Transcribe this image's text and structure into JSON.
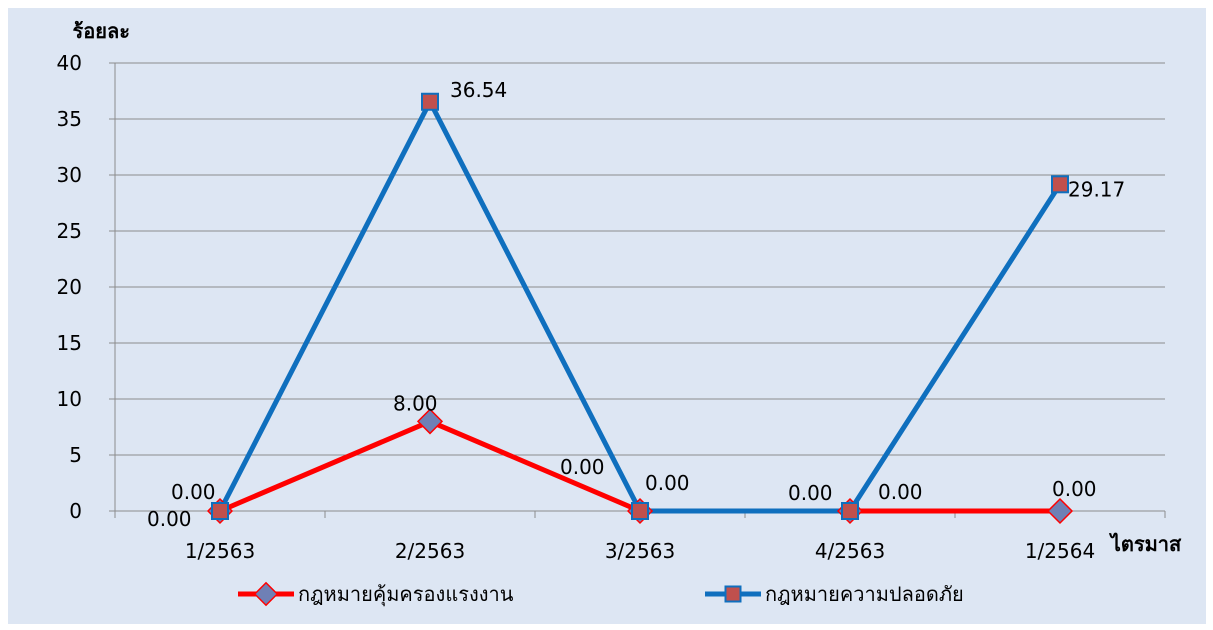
{
  "chart_data": {
    "type": "line",
    "ylabel": "ร้อยละ",
    "xlabel": "ไตรมาส",
    "categories": [
      "1/2563",
      "2/2563",
      "3/2563",
      "4/2563",
      "1/2564"
    ],
    "ylim": [
      0,
      40
    ],
    "yticks": [
      0,
      5,
      10,
      15,
      20,
      25,
      30,
      35,
      40
    ],
    "grid": true,
    "legend_position": "bottom",
    "series": [
      {
        "name": "กฎหมายคุ้มครองแรงงาน",
        "values": [
          0,
          8,
          0,
          0,
          0
        ],
        "labels": [
          "0.00",
          "8.00",
          "0.00",
          "0.00",
          "0.00"
        ],
        "color": "#ff0000",
        "marker": "diamond",
        "marker_color": "#6f80b5"
      },
      {
        "name": "กฎหมายความปลอดภัย",
        "values": [
          0,
          36.54,
          0,
          0,
          29.17
        ],
        "labels": [
          "0.00",
          "36.54",
          "0.00",
          "0.00",
          "29.17"
        ],
        "color": "#0f6fbe",
        "marker": "square",
        "marker_color": "#c0504d"
      }
    ]
  }
}
